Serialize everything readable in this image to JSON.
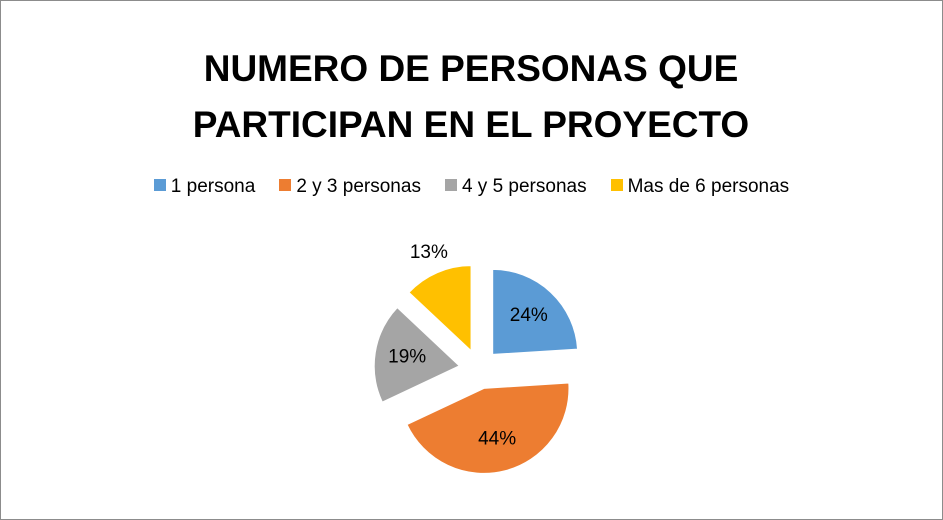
{
  "chart_data": {
    "type": "pie",
    "title": "NUMERO DE PERSONAS QUE PARTICIPAN EN EL PROYECTO",
    "categories": [
      "1 persona",
      "2 y 3 personas",
      "4 y 5 personas",
      "Mas de 6 personas"
    ],
    "values": [
      24,
      44,
      19,
      13
    ],
    "value_labels": [
      "24%",
      "44%",
      "19%",
      "13%"
    ],
    "colors": [
      "#5b9bd5",
      "#ed7d31",
      "#a5a5a5",
      "#ffc000"
    ],
    "legend": "top"
  }
}
